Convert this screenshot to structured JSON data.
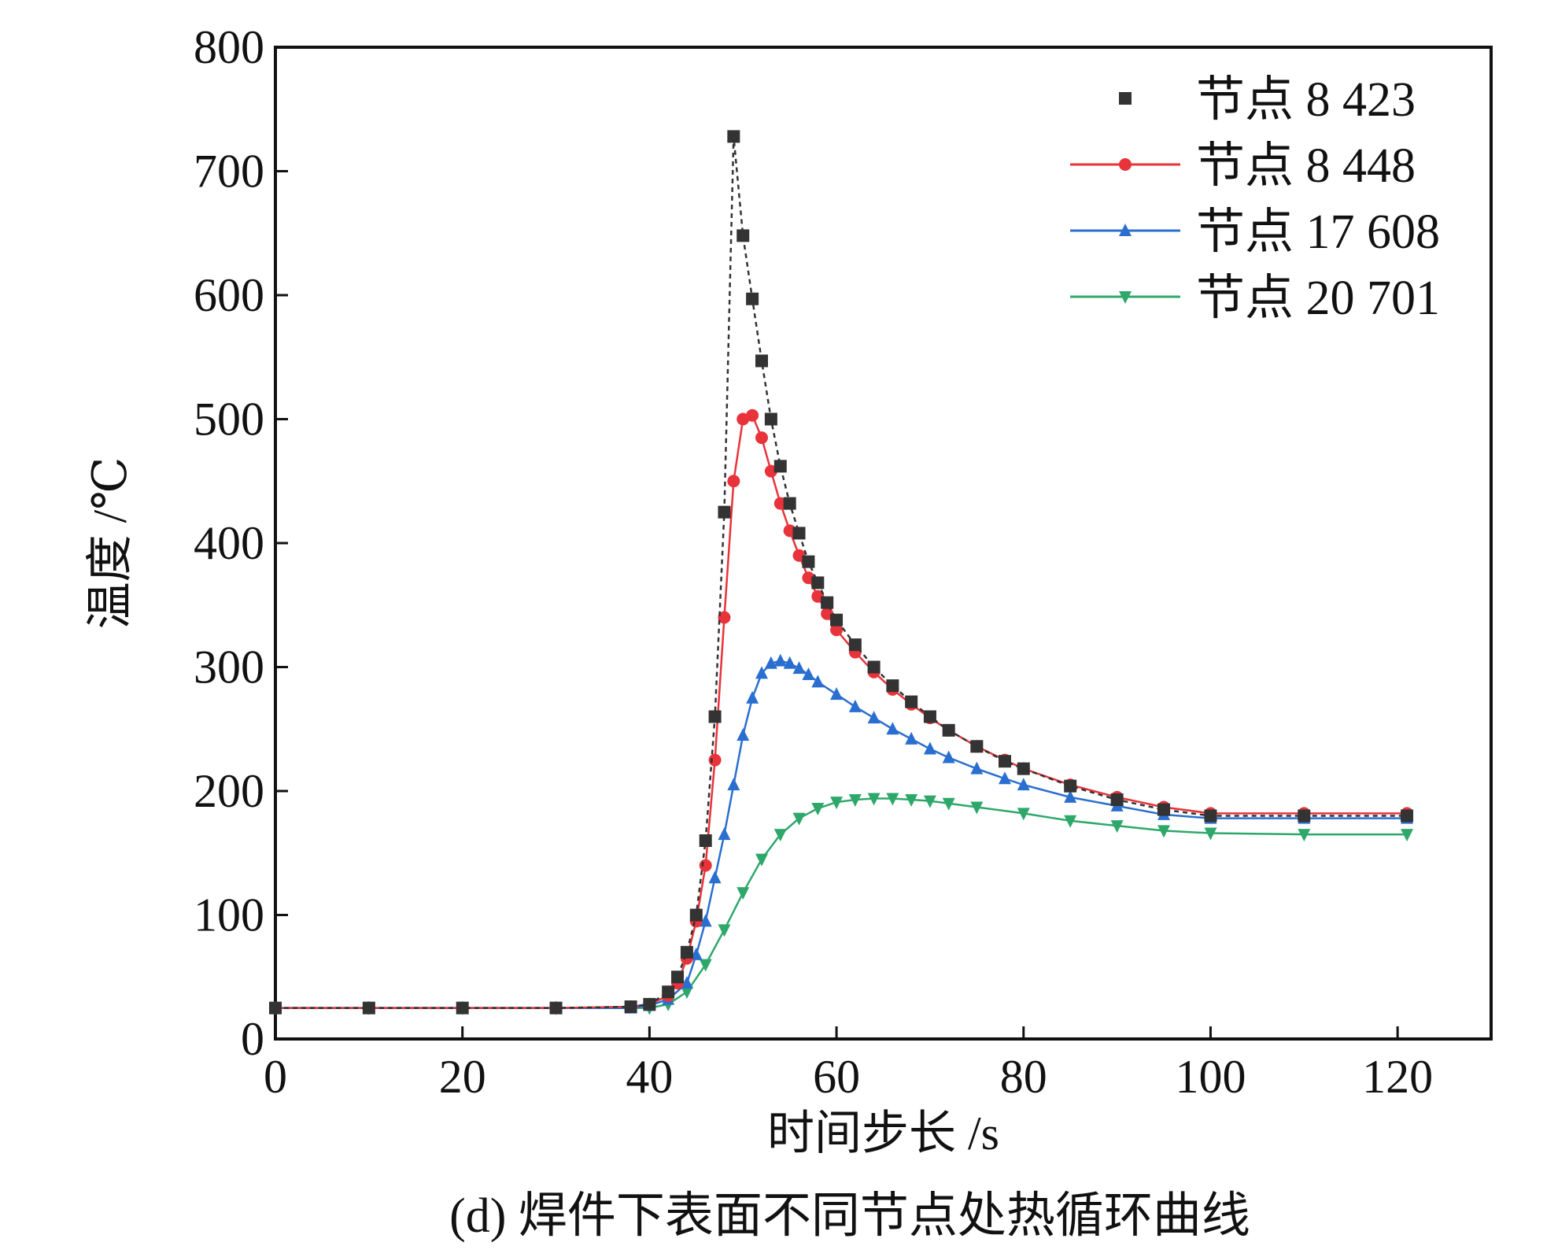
{
  "chart_data": {
    "type": "line",
    "title": "",
    "caption": "(d) 焊件下表面不同节点处热循环曲线",
    "xlabel": "时间步长 /s",
    "ylabel": "温度 /℃",
    "xlim": [
      0,
      130
    ],
    "ylim": [
      0,
      800
    ],
    "xticks": [
      0,
      20,
      40,
      60,
      80,
      100,
      120
    ],
    "yticks": [
      0,
      100,
      200,
      300,
      400,
      500,
      600,
      700,
      800
    ],
    "grid": false,
    "legend_position": "top-right",
    "series": [
      {
        "name": "节点 8 423",
        "color": "#333333",
        "marker": "square",
        "line_style": "dashed",
        "x": [
          0,
          10,
          20,
          30,
          38,
          40,
          42,
          43,
          44,
          45,
          46,
          47,
          48,
          49,
          50,
          51,
          52,
          53,
          54,
          55,
          56,
          57,
          58,
          59,
          60,
          62,
          64,
          66,
          68,
          70,
          72,
          75,
          78,
          80,
          85,
          90,
          95,
          100,
          110,
          121
        ],
        "y": [
          25,
          25,
          25,
          25,
          26,
          28,
          38,
          50,
          70,
          100,
          160,
          260,
          425,
          728,
          648,
          597,
          547,
          500,
          462,
          432,
          408,
          385,
          368,
          352,
          338,
          318,
          300,
          285,
          272,
          260,
          249,
          236,
          224,
          218,
          204,
          193,
          185,
          180,
          180,
          180
        ]
      },
      {
        "name": "节点 8 448",
        "color": "#e8333a",
        "marker": "circle",
        "line_style": "solid",
        "x": [
          0,
          10,
          20,
          30,
          38,
          40,
          42,
          43,
          44,
          45,
          46,
          47,
          48,
          49,
          50,
          51,
          52,
          53,
          54,
          55,
          56,
          57,
          58,
          59,
          60,
          62,
          64,
          66,
          68,
          70,
          72,
          75,
          78,
          80,
          85,
          90,
          95,
          100,
          110,
          121
        ],
        "y": [
          25,
          25,
          25,
          25,
          26,
          28,
          35,
          45,
          65,
          95,
          140,
          225,
          340,
          450,
          500,
          503,
          485,
          458,
          432,
          410,
          390,
          372,
          357,
          343,
          330,
          312,
          296,
          282,
          270,
          259,
          249,
          236,
          225,
          218,
          205,
          195,
          187,
          182,
          182,
          182
        ]
      },
      {
        "name": "节点 17 608",
        "color": "#2a6fd0",
        "marker": "triangle-up",
        "line_style": "solid",
        "x": [
          0,
          10,
          20,
          30,
          38,
          40,
          42,
          44,
          45,
          46,
          47,
          48,
          49,
          50,
          51,
          52,
          53,
          54,
          55,
          56,
          57,
          58,
          60,
          62,
          64,
          66,
          68,
          70,
          72,
          75,
          78,
          80,
          85,
          90,
          95,
          100,
          110,
          121
        ],
        "y": [
          25,
          25,
          25,
          25,
          25,
          27,
          32,
          45,
          68,
          95,
          130,
          165,
          205,
          245,
          275,
          295,
          303,
          305,
          303,
          299,
          294,
          288,
          278,
          268,
          259,
          250,
          242,
          234,
          227,
          218,
          210,
          205,
          195,
          188,
          181,
          178,
          178,
          178
        ]
      },
      {
        "name": "节点 20 701",
        "color": "#2ea86a",
        "marker": "triangle-down",
        "line_style": "solid",
        "x": [
          0,
          10,
          20,
          30,
          40,
          42,
          44,
          46,
          48,
          50,
          52,
          54,
          56,
          58,
          60,
          62,
          64,
          66,
          68,
          70,
          72,
          75,
          80,
          85,
          90,
          95,
          100,
          110,
          121
        ],
        "y": [
          25,
          25,
          25,
          25,
          25,
          28,
          38,
          60,
          88,
          118,
          145,
          165,
          178,
          186,
          191,
          193,
          194,
          194,
          193,
          192,
          190,
          187,
          182,
          176,
          172,
          168,
          166,
          165,
          165
        ]
      }
    ]
  }
}
